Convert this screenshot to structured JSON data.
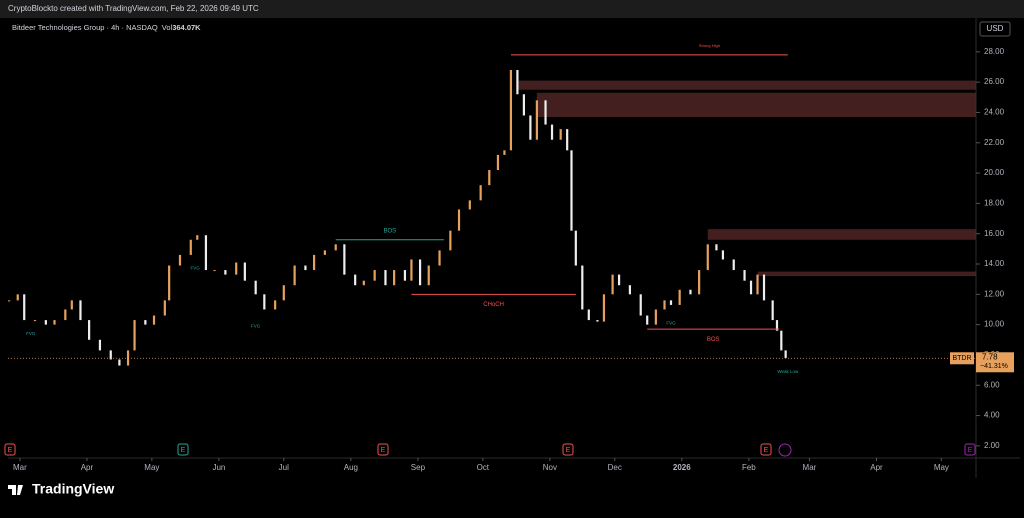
{
  "header": "CryptoBlockto created with TradingView.com, Feb 22, 2026 09:49 UTC",
  "footer": "TradingView",
  "chart_data": {
    "type": "candlestick",
    "title": "Bitdeer Technologies Group · 4h · NASDAQ",
    "volume_label": "Vol",
    "volume": "364.07K",
    "currency": "USD",
    "symbol": "BTDR",
    "last_price": 7.78,
    "change": "−41.31%",
    "earnings_marker": "E",
    "up_color": "#e8a15c",
    "down_color": "#eeeeee",
    "x": [
      -5,
      -1,
      2,
      7,
      12,
      16,
      21,
      24,
      28,
      32,
      37,
      42,
      46,
      50,
      53,
      58,
      62,
      67,
      69,
      74,
      79,
      82,
      86,
      90,
      95,
      100,
      104,
      109,
      113,
      118,
      122,
      127,
      132,
      136,
      141,
      146,
      150,
      155,
      159,
      164,
      169,
      173,
      178,
      181,
      185,
      189,
      194,
      199,
      203,
      208,
      213,
      217,
      221,
      224,
      227,
      230,
      233,
      236,
      239,
      243,
      246,
      250,
      253,
      255,
      257,
      260,
      263,
      267,
      270,
      274,
      277,
      282,
      287,
      290,
      294,
      298,
      301,
      305,
      310,
      314,
      318,
      322,
      325,
      330,
      335,
      338,
      341,
      344,
      348,
      350,
      352,
      354
    ],
    "values": [
      11.6,
      12.0,
      10.3,
      10.3,
      10.0,
      10.3,
      11.0,
      11.6,
      10.3,
      9.0,
      8.3,
      7.7,
      7.3,
      8.3,
      10.3,
      10.0,
      10.6,
      11.6,
      13.9,
      14.6,
      15.6,
      15.9,
      13.6,
      13.6,
      13.3,
      14.1,
      12.9,
      12.0,
      11.0,
      11.6,
      12.6,
      13.9,
      13.6,
      14.6,
      14.9,
      15.3,
      13.3,
      12.6,
      12.9,
      13.6,
      12.6,
      13.6,
      12.9,
      14.3,
      12.6,
      13.9,
      14.9,
      16.2,
      17.6,
      18.2,
      19.2,
      20.2,
      21.2,
      21.5,
      26.8,
      25.2,
      23.8,
      22.2,
      24.8,
      23.2,
      22.2,
      22.9,
      21.5,
      16.2,
      13.9,
      11.0,
      10.3,
      10.2,
      12.0,
      13.3,
      12.6,
      12.0,
      10.6,
      10.0,
      11.0,
      11.6,
      11.3,
      12.3,
      12.0,
      13.6,
      15.3,
      14.9,
      14.3,
      13.6,
      12.9,
      12.0,
      13.3,
      11.6,
      10.3,
      9.6,
      8.3,
      7.8
    ],
    "zones": [
      {
        "x": [
          230,
          442
        ],
        "range": [
          25.5,
          26.1
        ]
      },
      {
        "x": [
          239,
          442
        ],
        "range": [
          23.7,
          25.3
        ]
      },
      {
        "x": [
          318,
          442
        ],
        "range": [
          15.6,
          16.3
        ]
      },
      {
        "x": [
          341,
          442
        ],
        "range": [
          13.2,
          13.5
        ]
      }
    ],
    "levels": [
      {
        "label": "BOS",
        "color": "#26a69a",
        "x": [
          146,
          196
        ],
        "price": 15.6
      },
      {
        "label": "CHoCH",
        "color": "#ef5350",
        "x": [
          181,
          257
        ],
        "price": 12.0
      },
      {
        "label": "BOS",
        "color": "#ef5350",
        "x": [
          290,
          351
        ],
        "price": 9.7
      },
      {
        "label": "Strong High",
        "color": "#ef5350",
        "x": [
          227,
          355
        ],
        "price": 27.8
      }
    ],
    "notes": [
      {
        "label": "FVG",
        "x": 5,
        "price": 9.4
      },
      {
        "label": "FVG",
        "x": 81,
        "price": 13.7
      },
      {
        "label": "FVG",
        "x": 109,
        "price": 9.9
      },
      {
        "label": "FVG",
        "x": 301,
        "price": 10.1
      },
      {
        "label": "Weak Low",
        "x": 355,
        "price": 6.9
      }
    ],
    "xlim": [
      -5.5,
      442
    ],
    "ylim": [
      1.2,
      30.1
    ],
    "yticks": [
      {
        "value": 2,
        "label": "2.00"
      },
      {
        "value": 4,
        "label": "4.00"
      },
      {
        "value": 6,
        "label": "6.00"
      },
      {
        "value": 8,
        "label": "8.00"
      },
      {
        "value": 10,
        "label": "10.00"
      },
      {
        "value": 12,
        "label": "12.00"
      },
      {
        "value": 14,
        "label": "14.00"
      },
      {
        "value": 16,
        "label": "16.00"
      },
      {
        "value": 18,
        "label": "18.00"
      },
      {
        "value": 20,
        "label": "20.00"
      },
      {
        "value": 22,
        "label": "22.00"
      },
      {
        "value": 24,
        "label": "24.00"
      },
      {
        "value": 26,
        "label": "26.00"
      },
      {
        "value": 28,
        "label": "28.00"
      }
    ],
    "xticks": [
      {
        "value": 0,
        "label": "Mar"
      },
      {
        "value": 31,
        "label": "Apr"
      },
      {
        "value": 61,
        "label": "May"
      },
      {
        "value": 92,
        "label": "Jun"
      },
      {
        "value": 122,
        "label": "Jul"
      },
      {
        "value": 153,
        "label": "Aug"
      },
      {
        "value": 184,
        "label": "Sep"
      },
      {
        "value": 214,
        "label": "Oct"
      },
      {
        "value": 245,
        "label": "Nov"
      },
      {
        "value": 275,
        "label": "Dec"
      },
      {
        "value": 306,
        "label": "2026"
      },
      {
        "value": 337,
        "label": "Feb"
      },
      {
        "value": 365,
        "label": "Mar"
      },
      {
        "value": 396,
        "label": "Apr"
      },
      {
        "value": 426,
        "label": "May"
      }
    ]
  }
}
